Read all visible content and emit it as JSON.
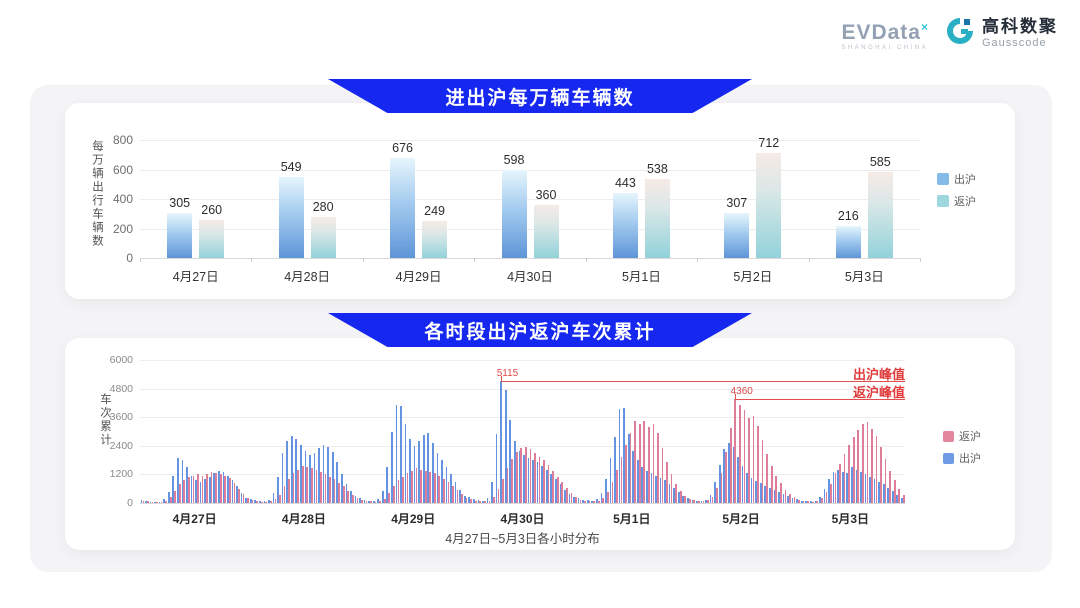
{
  "logo": {
    "evdata_text": "EVData",
    "evdata_sup": "×",
    "evdata_sub": "SHANGHAI CHINA",
    "gausscode_cn": "高科数聚",
    "gausscode_en": "Gausscode"
  },
  "colors": {
    "banner_blue": "#1628f0",
    "panel_gray": "#f4f4f6",
    "annotation_red": "#e04848",
    "chart1_outbound_legend": "#84bbe8",
    "chart1_return_legend": "#9ed7dd",
    "chart2_return_bar": "#de7d97",
    "chart2_outbound_bar": "#6493e2"
  },
  "chart_data": [
    {
      "type": "bar",
      "title": "进出沪每万辆车辆数",
      "ylabel": "每万辆出行车辆数",
      "categories": [
        "4月27日",
        "4月28日",
        "4月29日",
        "4月30日",
        "5月1日",
        "5月2日",
        "5月3日"
      ],
      "yticks": [
        0,
        200,
        400,
        600,
        800
      ],
      "ylim": [
        0,
        800
      ],
      "legend_position": "right",
      "grid": true,
      "series": [
        {
          "name": "出沪",
          "values": [
            305,
            549,
            676,
            598,
            443,
            307,
            216
          ],
          "legend_color": "#84bbe8"
        },
        {
          "name": "返沪",
          "values": [
            260,
            280,
            249,
            360,
            538,
            712,
            585
          ],
          "legend_color": "#9ed7dd"
        }
      ]
    },
    {
      "type": "bar",
      "title": "各时段出沪返沪车次累计",
      "ylabel": "车次累计",
      "xlabel": "4月27日~5月3日各小时分布",
      "categories": [
        "4月27日",
        "4月28日",
        "4月29日",
        "4月30日",
        "5月1日",
        "5月2日",
        "5月3日"
      ],
      "yticks": [
        0,
        1200,
        2400,
        3600,
        4800,
        6000
      ],
      "ylim": [
        0,
        6000
      ],
      "legend_position": "right",
      "grid": true,
      "legend_order": [
        "返沪",
        "出沪"
      ],
      "series": [
        {
          "name": "出沪",
          "color": "#6493e2",
          "legend_color": "#6e9be6",
          "hourly": [
            [
              120,
              80,
              60,
              50,
              60,
              150,
              450,
              1150,
              1900,
              1800,
              1500,
              1150,
              950,
              900,
              1000,
              1100,
              1250,
              1350,
              1300,
              1150,
              950,
              700,
              420,
              200
            ],
            [
              180,
              120,
              90,
              80,
              120,
              400,
              1100,
              2100,
              2600,
              2830,
              2700,
              2450,
              2200,
              2000,
              2100,
              2300,
              2450,
              2350,
              2150,
              1700,
              1200,
              800,
              500,
              280
            ],
            [
              200,
              130,
              100,
              90,
              150,
              500,
              1500,
              3000,
              4100,
              4050,
              3300,
              2700,
              2400,
              2600,
              2850,
              2950,
              2500,
              2100,
              1800,
              1500,
              1200,
              900,
              550,
              300
            ],
            [
              250,
              150,
              120,
              100,
              200,
              900,
              2900,
              5115,
              4750,
              3500,
              2600,
              2200,
              2000,
              1900,
              1800,
              1700,
              1550,
              1400,
              1200,
              1000,
              800,
              550,
              380,
              240
            ],
            [
              220,
              140,
              110,
              100,
              150,
              400,
              1000,
              1900,
              2750,
              3950,
              4000,
              2900,
              2200,
              1800,
              1500,
              1350,
              1250,
              1150,
              1050,
              950,
              780,
              620,
              460,
              300
            ],
            [
              200,
              130,
              100,
              90,
              130,
              350,
              900,
              1600,
              2250,
              2500,
              2350,
              1950,
              1550,
              1250,
              1050,
              920,
              820,
              720,
              650,
              560,
              460,
              360,
              280,
              200
            ],
            [
              150,
              100,
              80,
              70,
              100,
              250,
              600,
              1000,
              1300,
              1400,
              1300,
              1250,
              1500,
              1400,
              1300,
              1200,
              1100,
              1000,
              900,
              800,
              650,
              500,
              350,
              200
            ]
          ]
        },
        {
          "name": "返沪",
          "color": "#de7d97",
          "legend_color": "#e2879d",
          "hourly": [
            [
              100,
              70,
              50,
              40,
              50,
              100,
              250,
              500,
              800,
              950,
              1100,
              1150,
              1200,
              1150,
              1200,
              1300,
              1250,
              1200,
              1150,
              1050,
              850,
              600,
              380,
              220
            ],
            [
              120,
              80,
              60,
              60,
              80,
              150,
              350,
              700,
              1000,
              1250,
              1400,
              1550,
              1500,
              1450,
              1400,
              1300,
              1200,
              1100,
              1000,
              850,
              700,
              500,
              350,
              200
            ],
            [
              130,
              90,
              70,
              60,
              90,
              180,
              400,
              700,
              950,
              1100,
              1250,
              1350,
              1450,
              1400,
              1350,
              1300,
              1250,
              1150,
              1000,
              880,
              730,
              550,
              380,
              220
            ],
            [
              150,
              100,
              80,
              70,
              100,
              250,
              600,
              1000,
              1450,
              1850,
              2150,
              2300,
              2350,
              2250,
              2100,
              1950,
              1800,
              1600,
              1350,
              1100,
              880,
              640,
              420,
              260
            ],
            [
              140,
              90,
              70,
              70,
              100,
              200,
              450,
              900,
              1400,
              1950,
              2450,
              2950,
              3430,
              3300,
              3450,
              3200,
              3300,
              2950,
              2300,
              1700,
              1200,
              800,
              500,
              300
            ],
            [
              160,
              110,
              90,
              80,
              110,
              250,
              620,
              1250,
              2150,
              3150,
              4360,
              4100,
              3900,
              3550,
              3650,
              3250,
              2650,
              2050,
              1550,
              1150,
              820,
              560,
              390,
              250
            ],
            [
              130,
              90,
              70,
              60,
              90,
              200,
              450,
              800,
              1250,
              1650,
              2050,
              2450,
              2750,
              3050,
              3300,
              3400,
              3100,
              2800,
              2350,
              1850,
              1350,
              950,
              600,
              350
            ]
          ]
        }
      ],
      "annotations": [
        {
          "series": "出沪",
          "label": "出沪峰值",
          "value": 5115,
          "value_text": "5115"
        },
        {
          "series": "返沪",
          "label": "返沪峰值",
          "value": 4360,
          "value_text": "4360"
        }
      ]
    }
  ]
}
